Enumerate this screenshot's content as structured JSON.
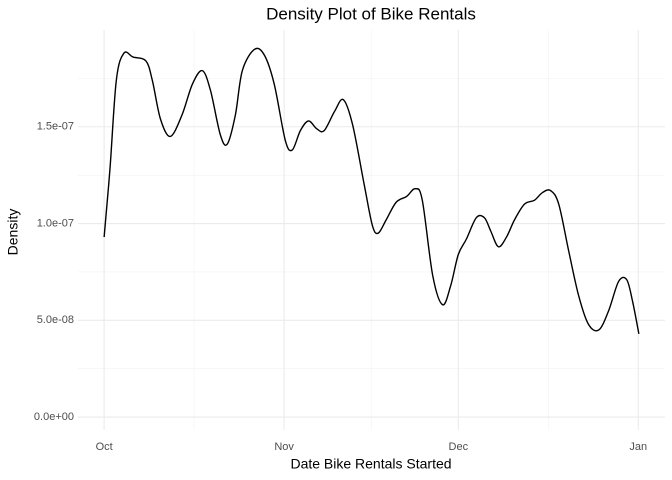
{
  "chart_data": {
    "type": "line",
    "title": "Density Plot of Bike Rentals",
    "x_label": "Date Bike Rentals Started",
    "y_label": "Density",
    "x": [
      0,
      1.0,
      2.1,
      3.4,
      5.0,
      7.2,
      8.3,
      9.7,
      11.4,
      13.4,
      15.2,
      16.9,
      18.3,
      20.0,
      21.2,
      22.6,
      23.8,
      25.9,
      27.6,
      29.3,
      31.2,
      32.4,
      33.8,
      35.2,
      36.6,
      37.9,
      39.7,
      41.2,
      42.8,
      44.8,
      46.2,
      47.2,
      48.6,
      50.3,
      52.1,
      53.6,
      54.8,
      56.6,
      58.3,
      59.7,
      61.0,
      62.4,
      64.1,
      65.5,
      66.6,
      67.9,
      69.3,
      70.7,
      72.4,
      74.1,
      75.5,
      76.9,
      78.3,
      80.0,
      81.7,
      83.4,
      85.2,
      86.9,
      88.6,
      90.0,
      91.0,
      92.1
    ],
    "series": [
      {
        "color": "#000000",
        "values": [
          9.3e-08,
          1.28e-07,
          1.74e-07,
          1.88e-07,
          1.86e-07,
          1.84e-07,
          1.74e-07,
          1.54e-07,
          1.45e-07,
          1.56e-07,
          1.72e-07,
          1.79e-07,
          1.69e-07,
          1.46e-07,
          1.41e-07,
          1.56e-07,
          1.79e-07,
          1.9e-07,
          1.87e-07,
          1.72e-07,
          1.43e-07,
          1.38e-07,
          1.48e-07,
          1.53e-07,
          1.49e-07,
          1.48e-07,
          1.58e-07,
          1.64e-07,
          1.51e-07,
          1.2e-07,
          9.9e-08,
          9.5e-08,
          1.02e-07,
          1.11e-07,
          1.14e-07,
          1.18e-07,
          1.12e-07,
          7.3e-08,
          5.8e-08,
          6.8e-08,
          8.4e-08,
          9.2e-08,
          1.03e-07,
          1.03e-07,
          9.6e-08,
          8.8e-08,
          9.3e-08,
          1.02e-07,
          1.1e-07,
          1.12e-07,
          1.16e-07,
          1.17e-07,
          1.1e-07,
          8.6e-08,
          6.3e-08,
          4.8e-08,
          4.5e-08,
          5.5e-08,
          7e-08,
          7.1e-08,
          6e-08,
          4.3e-08
        ]
      }
    ],
    "xlim": [
      -4.5,
      96.6
    ],
    "ylim": [
      -6.7e-09,
      2e-07
    ],
    "xticks": [
      {
        "value": 0,
        "label": "Oct"
      },
      {
        "value": 31,
        "label": "Nov"
      },
      {
        "value": 61,
        "label": "Dec"
      },
      {
        "value": 92,
        "label": "Jan"
      }
    ],
    "yticks": [
      {
        "value": 0,
        "label": "0.0e+00"
      },
      {
        "value": 5e-08,
        "label": "5.0e-08"
      },
      {
        "value": 1e-07,
        "label": "1.0e-07"
      },
      {
        "value": 1.5e-07,
        "label": "1.5e-07"
      }
    ],
    "xminor": [
      15.5,
      46,
      76.5
    ],
    "yminor": [
      2.5e-08,
      7.5e-08,
      1.25e-07,
      1.75e-07
    ],
    "grid": true
  }
}
